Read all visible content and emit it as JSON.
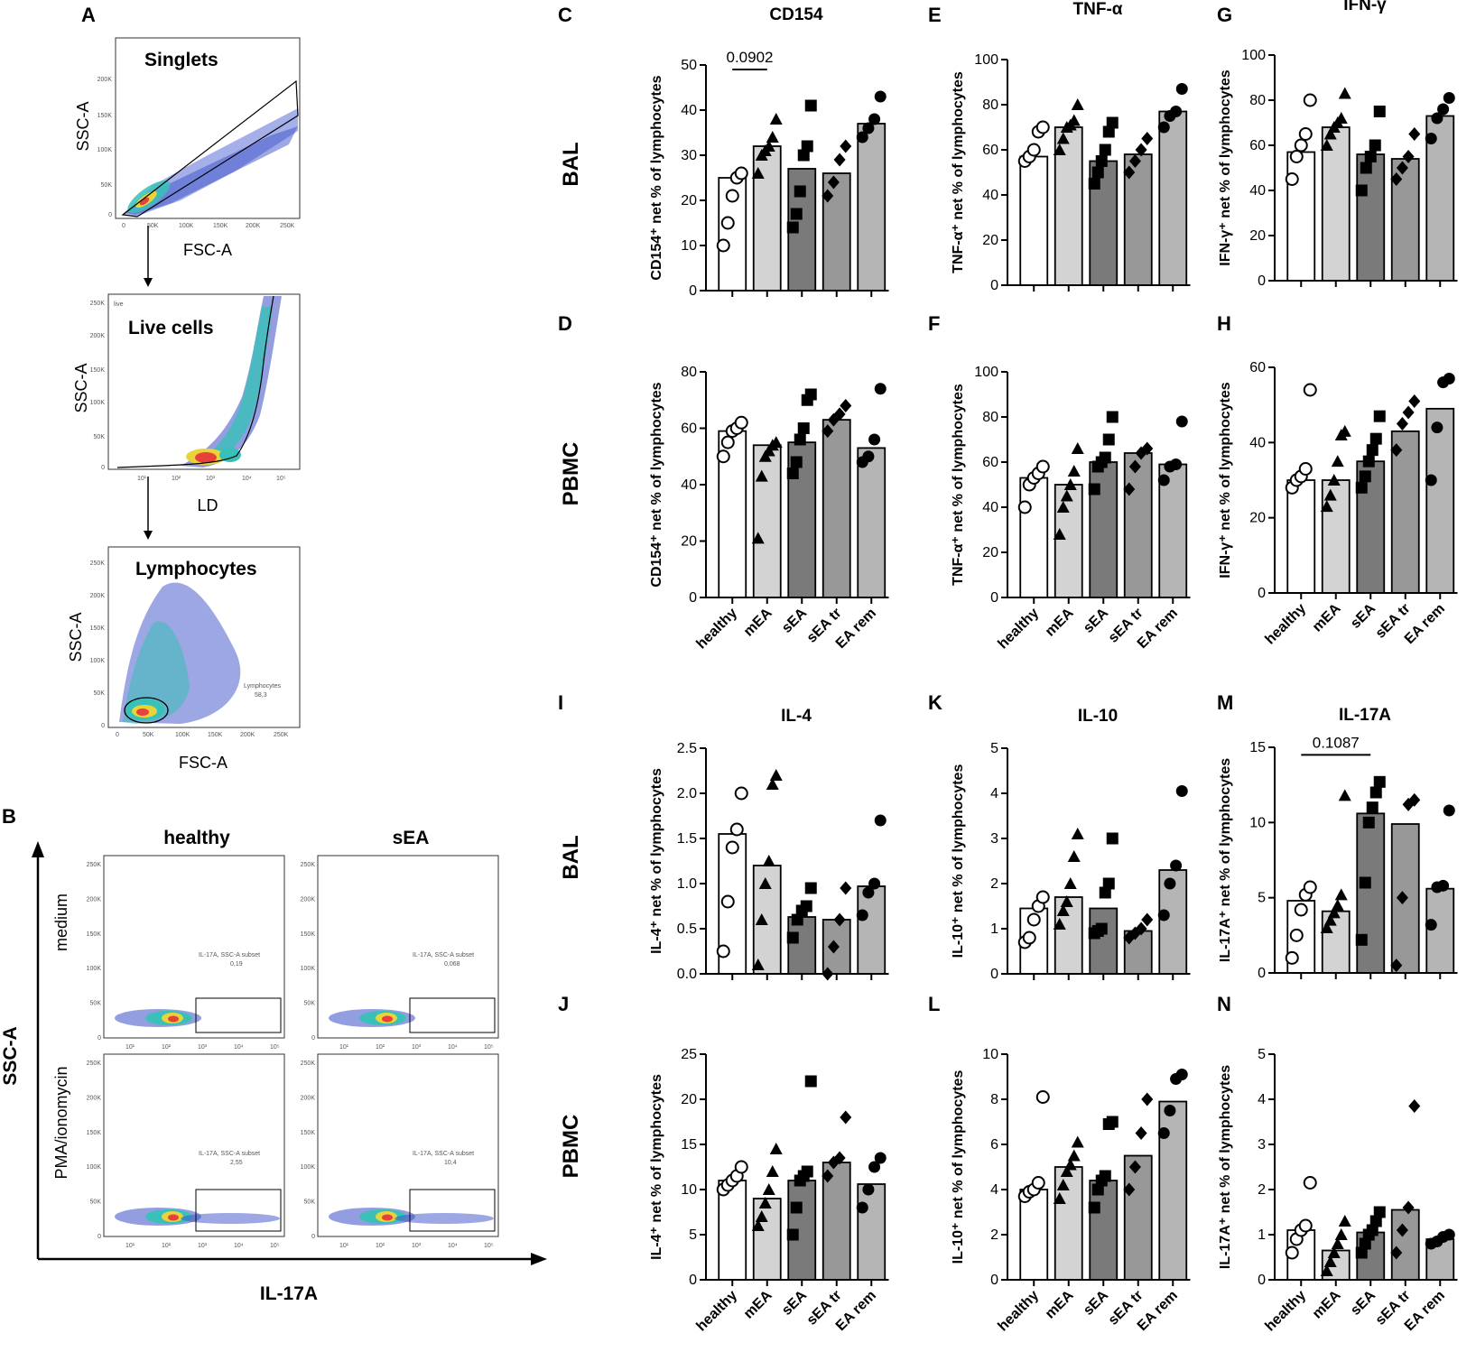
{
  "panel_letters": [
    "A",
    "B",
    "C",
    "D",
    "E",
    "F",
    "G",
    "H",
    "I",
    "J",
    "K",
    "L",
    "M",
    "N"
  ],
  "row_labels": {
    "bal": "BAL",
    "pbmc": "PBMC"
  },
  "flow_a": {
    "singlets": {
      "gate": "Singlets",
      "xlabel": "FSC-A",
      "ylabel": "SSC-A",
      "xticks": [
        "0",
        "50K",
        "100K",
        "150K",
        "200K",
        "250K"
      ],
      "yticks": [
        "0",
        "50K",
        "100K",
        "150K",
        "200K"
      ]
    },
    "live": {
      "gate": "Live cells",
      "corner": "live",
      "xlabel": "LD",
      "ylabel": "SSC-A",
      "xticks": [
        "10¹",
        "10²",
        "10³",
        "10⁴",
        "10⁵"
      ],
      "yticks": [
        "0",
        "50K",
        "100K",
        "150K",
        "200K",
        "250K"
      ]
    },
    "lymph": {
      "gate": "Lymphocytes",
      "xlabel": "FSC-A",
      "ylabel": "SSC-A",
      "gate_name": "Lymphocytes",
      "gate_value": "58,3",
      "xticks": [
        "0",
        "50K",
        "100K",
        "150K",
        "200K",
        "250K"
      ],
      "yticks": [
        "0",
        "50K",
        "100K",
        "150K",
        "200K",
        "250K"
      ]
    }
  },
  "flow_b": {
    "col_healthy": "healthy",
    "col_sea": "sEA",
    "row_medium": "medium",
    "row_pma": "PMA/ionomycin",
    "yaxis": "SSC-A",
    "xaxis": "IL-17A",
    "subset_name": "IL-17A, SSC-A subset",
    "values": {
      "h_med": "0,19",
      "s_med": "0,068",
      "h_pma": "2,55",
      "s_pma": "10,4"
    },
    "xticks": [
      "10¹",
      "10²",
      "10³",
      "10⁴",
      "10⁵"
    ],
    "yticks": [
      "0",
      "50K",
      "100K",
      "150K",
      "200K",
      "250K"
    ]
  },
  "colors": {
    "healthy": "#ffffff",
    "mEA": "#d3d3d3",
    "sEA": "#7a7a7a",
    "sEA tr": "#989898",
    "EA rem": "#b5b5b5"
  },
  "chart_data": [
    {
      "id": "C",
      "type": "bar",
      "title": "CD154",
      "ylabel": "CD154⁺ net % of lymphocytes",
      "ylim": [
        0,
        50
      ],
      "yticks": [
        0,
        10,
        20,
        30,
        40,
        50
      ],
      "categories": [
        "healthy",
        "mEA",
        "sEA",
        "sEA tr",
        "EA rem"
      ],
      "means": [
        25,
        32,
        27,
        26,
        37
      ],
      "points": [
        [
          10,
          15,
          21,
          25,
          26
        ],
        [
          26,
          30,
          31,
          32,
          34,
          38
        ],
        [
          14,
          17,
          22,
          30,
          32,
          41
        ],
        [
          21,
          24,
          29,
          32
        ],
        [
          34,
          36,
          38,
          43
        ]
      ],
      "pval": {
        "label": "0.0902",
        "from": 0,
        "to": 1,
        "y": 49
      }
    },
    {
      "id": "D",
      "type": "bar",
      "title": "",
      "ylabel": "CD154⁺ net % of lymphocytes",
      "ylim": [
        0,
        80
      ],
      "yticks": [
        0,
        20,
        40,
        60,
        80
      ],
      "categories": [
        "healthy",
        "mEA",
        "sEA",
        "sEA tr",
        "EA rem"
      ],
      "means": [
        59,
        54,
        55,
        63,
        53
      ],
      "points": [
        [
          50,
          55,
          59,
          60,
          62
        ],
        [
          21,
          43,
          50,
          52,
          54,
          55
        ],
        [
          44,
          48,
          56,
          60,
          70,
          72
        ],
        [
          59,
          63,
          65,
          68
        ],
        [
          48,
          50,
          56,
          74
        ]
      ]
    },
    {
      "id": "E",
      "type": "bar",
      "title": "TNF-α",
      "ylabel": "TNF-α⁺ net % of lymphocytes",
      "ylim": [
        0,
        100
      ],
      "yticks": [
        0,
        20,
        40,
        60,
        80,
        100
      ],
      "categories": [
        "healthy",
        "mEA",
        "sEA",
        "sEA tr",
        "EA rem"
      ],
      "means": [
        57,
        70,
        55,
        58,
        77
      ],
      "points": [
        [
          55,
          57,
          60,
          68,
          70
        ],
        [
          60,
          65,
          70,
          71,
          73,
          80
        ],
        [
          45,
          50,
          55,
          60,
          68,
          72
        ],
        [
          50,
          55,
          60,
          65
        ],
        [
          70,
          75,
          77,
          87
        ]
      ]
    },
    {
      "id": "F",
      "type": "bar",
      "title": "",
      "ylabel": "TNF-α⁺ net % of lymphocytes",
      "ylim": [
        0,
        100
      ],
      "yticks": [
        0,
        20,
        40,
        60,
        80,
        100
      ],
      "categories": [
        "healthy",
        "mEA",
        "sEA",
        "sEA tr",
        "EA rem"
      ],
      "means": [
        53,
        50,
        60,
        64,
        59
      ],
      "points": [
        [
          40,
          50,
          53,
          55,
          58
        ],
        [
          28,
          40,
          45,
          50,
          56,
          66
        ],
        [
          48,
          58,
          60,
          62,
          70,
          80
        ],
        [
          48,
          58,
          64,
          66
        ],
        [
          52,
          58,
          59,
          78
        ]
      ]
    },
    {
      "id": "G",
      "type": "bar",
      "title": "IFN-γ",
      "ylabel": "IFN-γ⁺ net % of lymphocytes",
      "ylim": [
        0,
        100
      ],
      "yticks": [
        0,
        20,
        40,
        60,
        80,
        100
      ],
      "categories": [
        "healthy",
        "mEA",
        "sEA",
        "sEA tr",
        "EA rem"
      ],
      "means": [
        57,
        68,
        56,
        54,
        73
      ],
      "points": [
        [
          45,
          55,
          60,
          65,
          80
        ],
        [
          60,
          65,
          68,
          70,
          72,
          83
        ],
        [
          40,
          50,
          55,
          60,
          75
        ],
        [
          45,
          50,
          55,
          65
        ],
        [
          63,
          72,
          76,
          81
        ]
      ]
    },
    {
      "id": "H",
      "type": "bar",
      "title": "",
      "ylabel": "IFN-γ⁺ net % of lymphocytes",
      "ylim": [
        0,
        60
      ],
      "yticks": [
        0,
        20,
        40,
        60
      ],
      "categories": [
        "healthy",
        "mEA",
        "sEA",
        "sEA tr",
        "EA rem"
      ],
      "means": [
        30,
        30,
        35,
        43,
        49
      ],
      "points": [
        [
          28,
          30,
          31,
          33,
          54
        ],
        [
          23,
          26,
          30,
          35,
          42,
          43
        ],
        [
          28,
          31,
          35,
          38,
          41,
          47
        ],
        [
          38,
          45,
          48,
          51
        ],
        [
          30,
          44,
          56,
          57
        ]
      ]
    },
    {
      "id": "I",
      "type": "bar",
      "title": "IL-4",
      "ylabel": "IL-4⁺ net % of lymphocytes",
      "ylim": [
        0,
        2.5
      ],
      "yticks": [
        "0.0",
        "0.5",
        "1.0",
        "1.5",
        "2.0",
        "2.5"
      ],
      "categories": [
        "healthy",
        "mEA",
        "sEA",
        "sEA tr",
        "EA rem"
      ],
      "means": [
        1.55,
        1.2,
        0.63,
        0.6,
        0.97
      ],
      "points": [
        [
          0.25,
          0.8,
          1.4,
          1.6,
          2.0
        ],
        [
          0.1,
          0.6,
          1.0,
          1.25,
          2.1,
          2.2
        ],
        [
          0.4,
          0.6,
          0.7,
          0.75,
          0.95
        ],
        [
          0.0,
          0.3,
          0.6,
          0.95
        ],
        [
          0.65,
          0.9,
          1.0,
          1.7
        ]
      ]
    },
    {
      "id": "J",
      "type": "bar",
      "title": "",
      "ylabel": "IL-4⁺ net % of lymphocytes",
      "ylim": [
        0,
        25
      ],
      "yticks": [
        0,
        5,
        10,
        15,
        20,
        25
      ],
      "categories": [
        "healthy",
        "mEA",
        "sEA",
        "sEA tr",
        "EA rem"
      ],
      "means": [
        11,
        9,
        11,
        13,
        10.6
      ],
      "points": [
        [
          10,
          10.5,
          11,
          11.5,
          12.5
        ],
        [
          6,
          7,
          8.5,
          10,
          12,
          14.5
        ],
        [
          5,
          8,
          11,
          11.5,
          12,
          22
        ],
        [
          11.5,
          13,
          13.5,
          18
        ],
        [
          8,
          10,
          12.5,
          13.5
        ]
      ]
    },
    {
      "id": "K",
      "type": "bar",
      "title": "IL-10",
      "ylabel": "IL-10⁺ net % of lymphocytes",
      "ylim": [
        0,
        5
      ],
      "yticks": [
        0,
        1,
        2,
        3,
        4,
        5
      ],
      "categories": [
        "healthy",
        "mEA",
        "sEA",
        "sEA tr",
        "EA rem"
      ],
      "means": [
        1.45,
        1.7,
        1.45,
        0.95,
        2.3
      ],
      "points": [
        [
          0.7,
          0.8,
          1.2,
          1.5,
          1.7
        ],
        [
          1.1,
          1.4,
          1.6,
          2.0,
          2.6,
          3.1
        ],
        [
          0.9,
          0.95,
          1.0,
          1.8,
          2.0,
          3.0
        ],
        [
          0.8,
          0.9,
          1.0,
          1.2
        ],
        [
          1.3,
          2.0,
          2.4,
          4.05
        ]
      ]
    },
    {
      "id": "L",
      "type": "bar",
      "title": "",
      "ylabel": "IL-10⁺ net % of lymphocytes",
      "ylim": [
        0,
        10
      ],
      "yticks": [
        0,
        2,
        4,
        6,
        8,
        10
      ],
      "categories": [
        "healthy",
        "mEA",
        "sEA",
        "sEA tr",
        "EA rem"
      ],
      "means": [
        4.0,
        5.0,
        4.4,
        5.5,
        7.9
      ],
      "points": [
        [
          3.7,
          3.9,
          4.0,
          4.3,
          8.1
        ],
        [
          3.6,
          4.2,
          4.8,
          5.1,
          5.5,
          6.1
        ],
        [
          3.2,
          4.0,
          4.4,
          4.6,
          6.9,
          7.0
        ],
        [
          4.0,
          5.0,
          6.5,
          8.0
        ],
        [
          6.5,
          7.5,
          8.9,
          9.1
        ]
      ]
    },
    {
      "id": "M",
      "type": "bar",
      "title": "IL-17A",
      "ylabel": "IL-17A⁺ net % of lymphocytes",
      "ylim": [
        0,
        15
      ],
      "yticks": [
        0,
        5,
        10,
        15
      ],
      "categories": [
        "healthy",
        "mEA",
        "sEA",
        "sEA tr",
        "EA rem"
      ],
      "means": [
        4.8,
        4.1,
        10.6,
        9.9,
        5.6
      ],
      "points": [
        [
          1.0,
          2.5,
          4.2,
          5.2,
          5.7
        ],
        [
          3.0,
          3.5,
          4.0,
          4.5,
          5.2,
          11.8
        ],
        [
          2.2,
          6.0,
          10.0,
          11.0,
          12.0,
          12.7
        ],
        [
          0.5,
          5.0,
          11.2,
          11.5
        ],
        [
          3.2,
          5.7,
          5.8,
          10.8
        ]
      ],
      "pval": {
        "label": "0.1087",
        "from": 0,
        "to": 2,
        "y": 14.5
      }
    },
    {
      "id": "N",
      "type": "bar",
      "title": "",
      "ylabel": "IL-17A⁺ net % of lymphocytes",
      "ylim": [
        0,
        5
      ],
      "yticks": [
        0,
        1,
        2,
        3,
        4,
        5
      ],
      "categories": [
        "healthy",
        "mEA",
        "sEA",
        "sEA tr",
        "EA rem"
      ],
      "means": [
        1.1,
        0.65,
        1.05,
        1.55,
        0.9
      ],
      "points": [
        [
          0.6,
          0.9,
          1.1,
          1.2,
          2.15
        ],
        [
          0.2,
          0.4,
          0.6,
          0.8,
          1.0,
          1.3
        ],
        [
          0.6,
          0.8,
          1.0,
          1.1,
          1.3,
          1.5
        ],
        [
          0.6,
          1.1,
          1.6,
          3.85
        ],
        [
          0.8,
          0.85,
          0.95,
          1.0
        ]
      ]
    }
  ]
}
